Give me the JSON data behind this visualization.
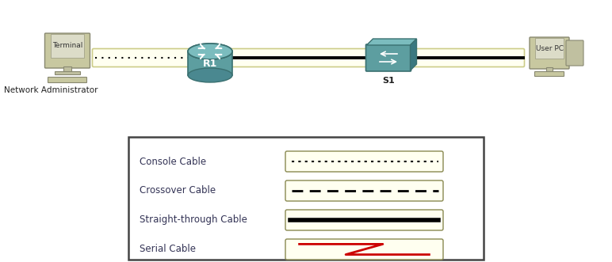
{
  "bg_color": "#ffffff",
  "cable_fill": "#fffff0",
  "cable_edge": "#aaa860",
  "network_cable_fill": "#fffff0",
  "network_cable_edge": "#cccc88",
  "legend_box_fill": "#ffffff",
  "legend_box_edge": "#333333",
  "router_fill": "#5d9ea0",
  "router_edge": "#3a7070",
  "switch_fill": "#5d9ea0",
  "switch_edge": "#3a7070",
  "terminal_fill": "#c8c8a8",
  "terminal_screen": "#e0e0c8",
  "pc_fill": "#c8c8a8",
  "labels": [
    "Console Cable",
    "Crossover Cable",
    "Straight-through Cable",
    "Serial Cable"
  ],
  "network_admin_label": "Network Administrator",
  "terminal_label": "Terminal",
  "user_pc_label": "User PC",
  "router_label": "R1",
  "switch_label": "S1"
}
